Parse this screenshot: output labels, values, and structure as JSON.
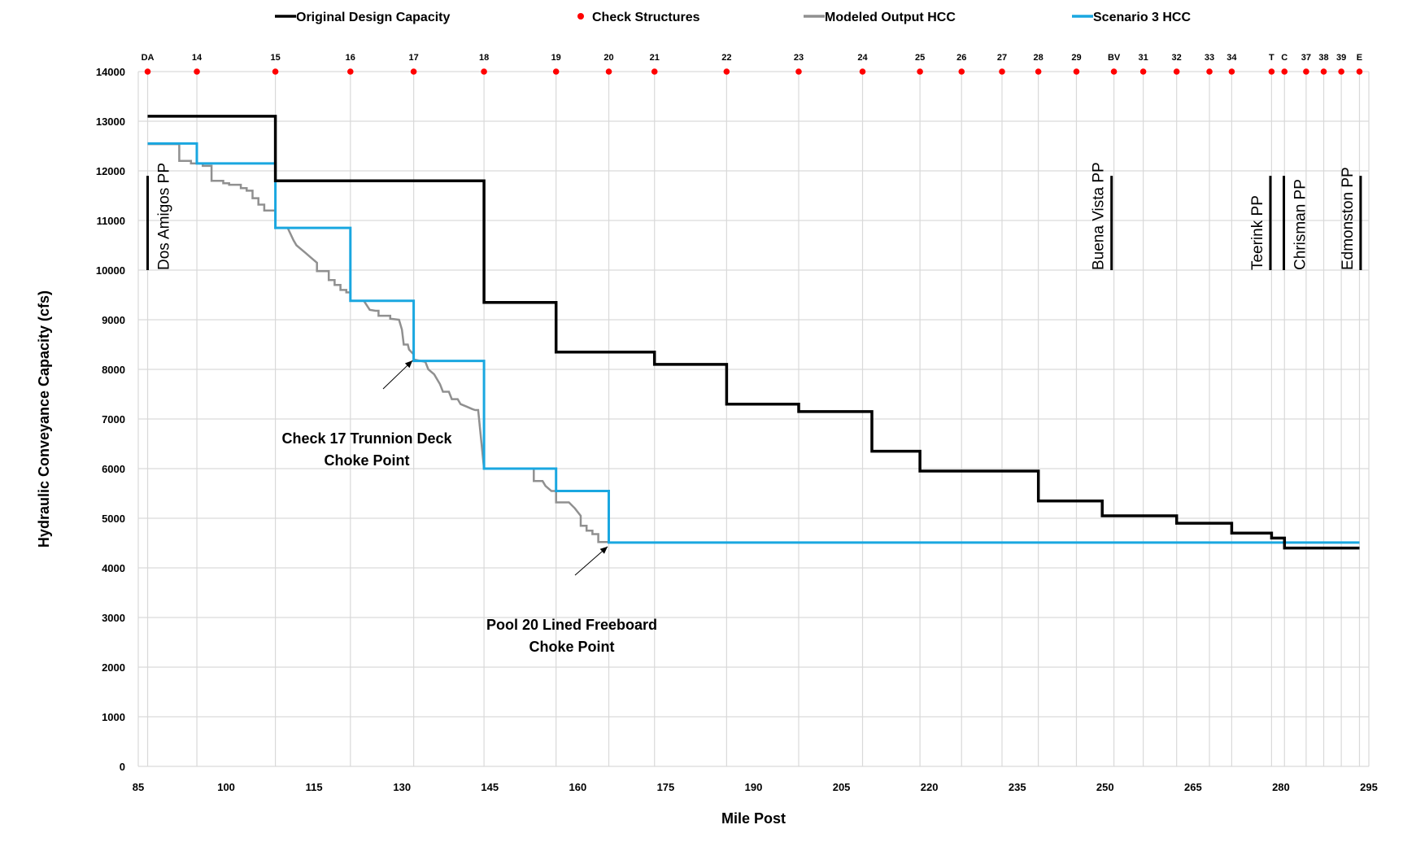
{
  "chart_data": {
    "type": "line",
    "xlabel": "Mile Post",
    "ylabel": "Hydraulic Conveyance Capacity (cfs)",
    "xlim": [
      85,
      295
    ],
    "ylim": [
      0,
      14000
    ],
    "x_ticks": [
      85,
      100,
      115,
      130,
      145,
      160,
      175,
      190,
      205,
      220,
      235,
      250,
      265,
      280,
      295
    ],
    "y_ticks": [
      0,
      1000,
      2000,
      3000,
      4000,
      5000,
      6000,
      7000,
      8000,
      9000,
      10000,
      11000,
      12000,
      13000,
      14000
    ],
    "grid": true,
    "legend_position": "top",
    "legend": [
      {
        "name": "Original Design Capacity",
        "color": "#000000",
        "kind": "line"
      },
      {
        "name": "Check Structures",
        "color": "#ff0000",
        "kind": "marker"
      },
      {
        "name": "Modeled Output HCC",
        "color": "#909090",
        "kind": "line"
      },
      {
        "name": "Scenario 3 HCC",
        "color": "#1aa7e0",
        "kind": "line"
      }
    ],
    "check_structures": [
      {
        "label": "DA",
        "mp": 86.6
      },
      {
        "label": "14",
        "mp": 95
      },
      {
        "label": "15",
        "mp": 108.4
      },
      {
        "label": "16",
        "mp": 121.2
      },
      {
        "label": "17",
        "mp": 132
      },
      {
        "label": "18",
        "mp": 144
      },
      {
        "label": "19",
        "mp": 156.3
      },
      {
        "label": "20",
        "mp": 165.3
      },
      {
        "label": "21",
        "mp": 173.1
      },
      {
        "label": "22",
        "mp": 185.4
      },
      {
        "label": "23",
        "mp": 197.7
      },
      {
        "label": "24",
        "mp": 208.6
      },
      {
        "label": "25",
        "mp": 218.4
      },
      {
        "label": "26",
        "mp": 225.5
      },
      {
        "label": "27",
        "mp": 232.4
      },
      {
        "label": "28",
        "mp": 238.6
      },
      {
        "label": "29",
        "mp": 245.1
      },
      {
        "label": "BV",
        "mp": 251.5
      },
      {
        "label": "31",
        "mp": 256.5
      },
      {
        "label": "32",
        "mp": 262.2
      },
      {
        "label": "33",
        "mp": 267.8
      },
      {
        "label": "34",
        "mp": 271.6
      },
      {
        "label": "T",
        "mp": 278.4
      },
      {
        "label": "C",
        "mp": 280.6
      },
      {
        "label": "37",
        "mp": 284.3
      },
      {
        "label": "38",
        "mp": 287.3
      },
      {
        "label": "39",
        "mp": 290.3
      },
      {
        "label": "E",
        "mp": 293.4
      }
    ],
    "pumping_plants": [
      {
        "label": "Dos Amigos PP",
        "mp": 86.6,
        "label_side": "right"
      },
      {
        "label": "Buena Vista PP",
        "mp": 251.1,
        "label_side": "left"
      },
      {
        "label": "Teerink PP",
        "mp": 278.2,
        "label_side": "left"
      },
      {
        "label": "Chrisman PP",
        "mp": 280.5,
        "label_side": "right"
      },
      {
        "label": "Edmonston PP",
        "mp": 293.6,
        "label_side": "left"
      }
    ],
    "pp_line_range": [
      10000,
      11900
    ],
    "series": [
      {
        "name": "Original Design Capacity",
        "color": "#000000",
        "width": 3.5,
        "points": [
          [
            86.6,
            13100
          ],
          [
            108.4,
            13100
          ],
          [
            108.4,
            11800
          ],
          [
            144,
            11800
          ],
          [
            144,
            9350
          ],
          [
            156.3,
            9350
          ],
          [
            156.3,
            8350
          ],
          [
            173.1,
            8350
          ],
          [
            173.1,
            8100
          ],
          [
            185.4,
            8100
          ],
          [
            185.4,
            7300
          ],
          [
            197.7,
            7300
          ],
          [
            197.7,
            7150
          ],
          [
            210.2,
            7150
          ],
          [
            210.2,
            6350
          ],
          [
            218.4,
            6350
          ],
          [
            218.4,
            5950
          ],
          [
            238.6,
            5950
          ],
          [
            238.6,
            5350
          ],
          [
            249.5,
            5350
          ],
          [
            249.5,
            5050
          ],
          [
            262.2,
            5050
          ],
          [
            262.2,
            4900
          ],
          [
            271.6,
            4900
          ],
          [
            271.6,
            4700
          ],
          [
            278.4,
            4700
          ],
          [
            278.4,
            4600
          ],
          [
            280.6,
            4600
          ],
          [
            280.6,
            4400
          ],
          [
            293.4,
            4400
          ]
        ]
      },
      {
        "name": "Modeled Output HCC",
        "color": "#909090",
        "width": 2.5,
        "points": [
          [
            86.6,
            12540
          ],
          [
            92,
            12540
          ],
          [
            92,
            12200
          ],
          [
            94,
            12200
          ],
          [
            94,
            12150
          ],
          [
            96,
            12150
          ],
          [
            96,
            12100
          ],
          [
            97.5,
            12100
          ],
          [
            97.5,
            11800
          ],
          [
            99.5,
            11800
          ],
          [
            99.5,
            11750
          ],
          [
            100.5,
            11750
          ],
          [
            100.5,
            11720
          ],
          [
            102.5,
            11720
          ],
          [
            102.5,
            11650
          ],
          [
            103.5,
            11650
          ],
          [
            103.5,
            11600
          ],
          [
            104.5,
            11600
          ],
          [
            104.5,
            11450
          ],
          [
            105.5,
            11450
          ],
          [
            105.5,
            11320
          ],
          [
            106.5,
            11320
          ],
          [
            106.5,
            11200
          ],
          [
            108.4,
            11200
          ],
          [
            108.4,
            10850
          ],
          [
            110.5,
            10850
          ],
          [
            111.5,
            10600
          ],
          [
            112,
            10500
          ],
          [
            113,
            10400
          ],
          [
            113.5,
            10350
          ],
          [
            114.5,
            10250
          ],
          [
            115.5,
            10150
          ],
          [
            115.5,
            9980
          ],
          [
            117.5,
            9980
          ],
          [
            117.5,
            9800
          ],
          [
            118.5,
            9800
          ],
          [
            118.5,
            9700
          ],
          [
            119.5,
            9700
          ],
          [
            119.5,
            9600
          ],
          [
            120.5,
            9600
          ],
          [
            120.5,
            9550
          ],
          [
            121.2,
            9550
          ],
          [
            121.2,
            9380
          ],
          [
            123.5,
            9380
          ],
          [
            124.5,
            9200
          ],
          [
            125.5,
            9180
          ],
          [
            126,
            9180
          ],
          [
            126,
            9080
          ],
          [
            128,
            9080
          ],
          [
            128,
            9020
          ],
          [
            129.5,
            9000
          ],
          [
            130,
            8800
          ],
          [
            130.3,
            8500
          ],
          [
            131,
            8500
          ],
          [
            131.2,
            8400
          ],
          [
            132,
            8300
          ],
          [
            132,
            8200
          ],
          [
            134,
            8150
          ],
          [
            134.5,
            8000
          ],
          [
            135.5,
            7900
          ],
          [
            136.5,
            7700
          ],
          [
            137,
            7550
          ],
          [
            138,
            7550
          ],
          [
            138.5,
            7400
          ],
          [
            139.5,
            7400
          ],
          [
            140,
            7300
          ],
          [
            141,
            7250
          ],
          [
            142,
            7200
          ],
          [
            142.5,
            7180
          ],
          [
            143,
            7180
          ],
          [
            144,
            6000
          ],
          [
            152.5,
            6000
          ],
          [
            152.5,
            5750
          ],
          [
            154,
            5750
          ],
          [
            154.5,
            5650
          ],
          [
            155.5,
            5550
          ],
          [
            156.3,
            5550
          ],
          [
            156.3,
            5320
          ],
          [
            158.5,
            5320
          ],
          [
            159.5,
            5200
          ],
          [
            160.5,
            5050
          ],
          [
            160.5,
            4850
          ],
          [
            161.5,
            4850
          ],
          [
            161.5,
            4750
          ],
          [
            162.5,
            4750
          ],
          [
            162.5,
            4680
          ],
          [
            163.5,
            4680
          ],
          [
            163.5,
            4520
          ],
          [
            165.3,
            4520
          ]
        ]
      },
      {
        "name": "Scenario 3 HCC",
        "color": "#1aa7e0",
        "width": 3,
        "points": [
          [
            86.6,
            12550
          ],
          [
            95,
            12550
          ],
          [
            95,
            12150
          ],
          [
            108.4,
            12150
          ],
          [
            108.4,
            10850
          ],
          [
            121.2,
            10850
          ],
          [
            121.2,
            9380
          ],
          [
            132,
            9380
          ],
          [
            132,
            8170
          ],
          [
            144,
            8170
          ],
          [
            144,
            6000
          ],
          [
            156.3,
            6000
          ],
          [
            156.3,
            5550
          ],
          [
            165.3,
            5550
          ],
          [
            165.3,
            4510
          ],
          [
            293.4,
            4510
          ]
        ]
      }
    ],
    "annotations": [
      {
        "lines": [
          "Check 17 Trunnion Deck",
          "Choke Point"
        ],
        "arrow_to": [
          132,
          8200
        ]
      },
      {
        "lines": [
          "Pool 20 Lined Freeboard",
          "Choke Point"
        ],
        "arrow_to": [
          165.3,
          4450
        ]
      }
    ]
  }
}
